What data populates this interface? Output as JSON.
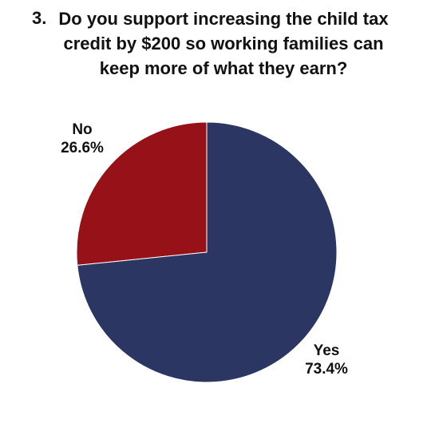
{
  "question": {
    "number": "3.",
    "text": "Do you support increasing the child tax credit by $200 so working families can keep more of what they earn?"
  },
  "chart_data": {
    "type": "pie",
    "title": "Do you support increasing the child tax credit by $200 so working families can keep more of what they earn?",
    "slices": [
      {
        "label": "No",
        "value": 26.6,
        "value_label": "26.6%",
        "color": "#961218"
      },
      {
        "label": "Yes",
        "value": 73.4,
        "value_label": "73.4%",
        "color": "#2b3663"
      }
    ],
    "start_angle": "12 o'clock",
    "direction": "counter-clockwise",
    "legend": "none"
  }
}
